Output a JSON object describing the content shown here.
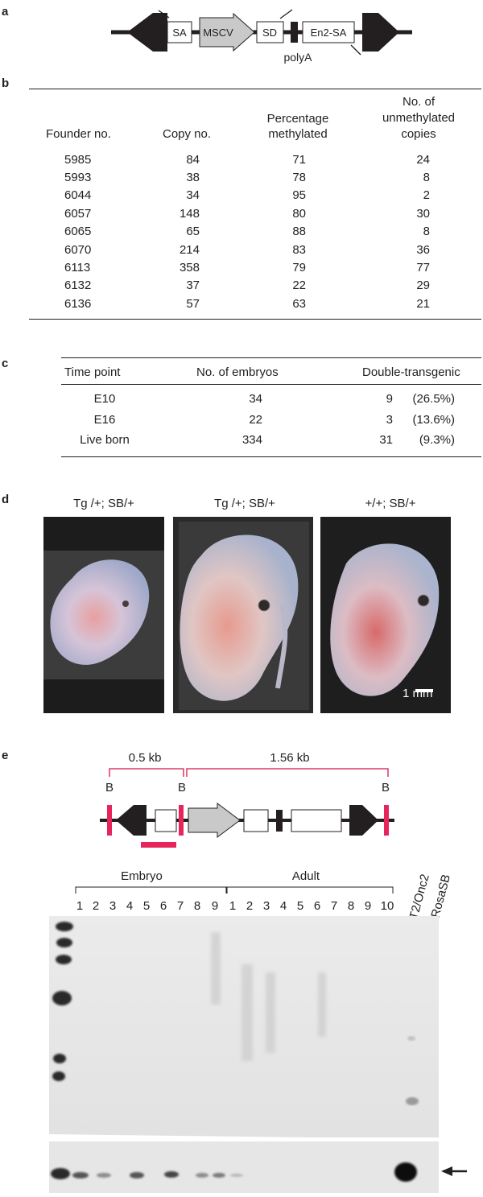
{
  "panels": {
    "a": {
      "label": "a",
      "elements": [
        "SA",
        "MSCV",
        "SD",
        "En2-SA"
      ],
      "polyA": "polyA"
    },
    "b": {
      "label": "b",
      "headers": {
        "founder": "Founder no.",
        "copy": "Copy no.",
        "pct_1": "Percentage",
        "pct_2": "methylated",
        "unm_1": "No. of",
        "unm_2": "unmethylated",
        "unm_3": "copies"
      },
      "rows": [
        [
          "5985",
          "84",
          "71",
          "24"
        ],
        [
          "5993",
          "38",
          "78",
          "8"
        ],
        [
          "6044",
          "34",
          "95",
          "2"
        ],
        [
          "6057",
          "148",
          "80",
          "30"
        ],
        [
          "6065",
          "65",
          "88",
          "8"
        ],
        [
          "6070",
          "214",
          "83",
          "36"
        ],
        [
          "6113",
          "358",
          "79",
          "77"
        ],
        [
          "6132",
          "37",
          "22",
          "29"
        ],
        [
          "6136",
          "57",
          "63",
          "21"
        ]
      ]
    },
    "c": {
      "label": "c",
      "headers": [
        "Time point",
        "No. of embryos",
        "Double-transgenic"
      ],
      "rows": [
        [
          "E10",
          "34",
          "9",
          "(26.5%)"
        ],
        [
          "E16",
          "22",
          "3",
          "(13.6%)"
        ],
        [
          "Live born",
          "334",
          "31",
          "(9.3%)"
        ]
      ]
    },
    "d": {
      "label": "d",
      "photo_labels": [
        "Tg /+; SB/+",
        "Tg /+; SB/+",
        "+/+; SB/+"
      ],
      "scale_bar": "1 mm"
    },
    "e": {
      "label": "e",
      "fragment_1": "0.5 kb",
      "fragment_2": "1.56 kb",
      "site": "B",
      "group_embryo": "Embryo",
      "group_adult": "Adult",
      "embryo_lanes": [
        "1",
        "2",
        "3",
        "4",
        "5",
        "6",
        "7",
        "8",
        "9"
      ],
      "adult_lanes": [
        "1",
        "2",
        "3",
        "4",
        "5",
        "6",
        "7",
        "8",
        "9",
        "10"
      ],
      "control_1": "T2/Onc2",
      "control_2": "RosaSB"
    }
  }
}
